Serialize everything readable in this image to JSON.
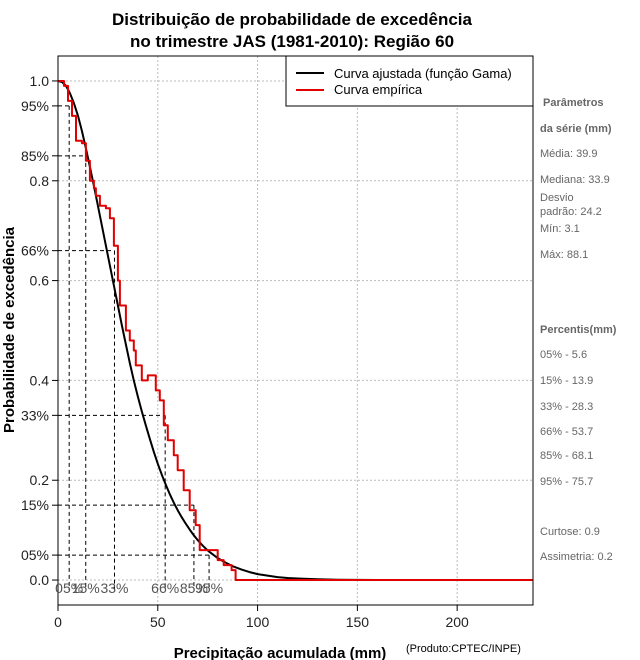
{
  "chart_data": {
    "type": "line",
    "title": [
      "Distribuição de probabilidade de excedência",
      "no trimestre JAS (1981-2010): Região 60"
    ],
    "xlabel": "Precipitação acumulada (mm)",
    "ylabel": "Probabilidade de excedência",
    "credit": "(Produto:CPTEC/INPE)",
    "xlim": [
      0,
      238
    ],
    "ylim": [
      -0.05,
      1.05
    ],
    "xticks": [
      0,
      50,
      100,
      150,
      200
    ],
    "yticks": [
      {
        "v": 1.0,
        "label": "1.0"
      },
      {
        "v": 0.95,
        "label": "95%"
      },
      {
        "v": 0.85,
        "label": "85%"
      },
      {
        "v": 0.8,
        "label": "0.8"
      },
      {
        "v": 0.66,
        "label": "66%"
      },
      {
        "v": 0.6,
        "label": "0.6"
      },
      {
        "v": 0.4,
        "label": "0.4"
      },
      {
        "v": 0.33,
        "label": "33%"
      },
      {
        "v": 0.2,
        "label": "0.2"
      },
      {
        "v": 0.15,
        "label": "15%"
      },
      {
        "v": 0.05,
        "label": "05%"
      },
      {
        "v": 0.0,
        "label": "0.0"
      }
    ],
    "grid": true,
    "legend": [
      {
        "label": "Curva ajustada (função Gama)",
        "color": "#000000"
      },
      {
        "label": "Curva empírica",
        "color": "#e00000"
      }
    ],
    "series": [
      {
        "name": "Curva ajustada (função Gama)",
        "color": "#000000",
        "x": [
          0,
          2,
          4,
          6,
          8,
          10,
          12,
          14,
          16,
          18,
          20,
          22,
          24,
          26,
          28,
          30,
          32,
          34,
          36,
          38,
          40,
          42,
          44,
          46,
          48,
          50,
          52,
          54,
          56,
          58,
          60,
          62,
          64,
          66,
          68,
          70,
          72,
          74,
          76,
          78,
          80,
          84,
          88,
          92,
          96,
          100,
          105,
          110,
          115,
          120,
          130,
          140,
          150,
          160,
          170
        ],
        "y": [
          1.0,
          0.998,
          0.99,
          0.975,
          0.955,
          0.93,
          0.9,
          0.865,
          0.828,
          0.79,
          0.75,
          0.71,
          0.67,
          0.63,
          0.59,
          0.55,
          0.51,
          0.472,
          0.435,
          0.4,
          0.368,
          0.338,
          0.31,
          0.283,
          0.257,
          0.233,
          0.211,
          0.191,
          0.172,
          0.155,
          0.14,
          0.126,
          0.113,
          0.101,
          0.09,
          0.08,
          0.071,
          0.063,
          0.056,
          0.05,
          0.044,
          0.035,
          0.027,
          0.021,
          0.016,
          0.012,
          0.009,
          0.006,
          0.004,
          0.003,
          0.0015,
          0.0007,
          0.0003,
          0.0001,
          0.0
        ]
      },
      {
        "name": "Curva empírica",
        "color": "#e00000",
        "x": [
          0,
          3,
          3,
          5,
          5,
          7,
          7,
          9,
          9,
          12,
          12,
          14,
          14,
          16,
          16,
          18,
          18,
          19,
          19,
          21,
          21,
          24,
          24,
          26,
          26,
          28,
          28,
          30,
          30,
          31,
          31,
          34,
          34,
          36,
          36,
          38,
          38,
          39,
          39,
          42,
          42,
          45,
          45,
          49,
          49,
          51,
          51,
          53,
          53,
          55,
          55,
          58,
          58,
          60,
          60,
          63,
          63,
          66,
          66,
          69,
          69,
          71,
          71,
          80,
          80,
          83,
          83,
          87,
          87,
          89,
          89,
          238
        ],
        "y": [
          1.0,
          1.0,
          0.99,
          0.99,
          0.96,
          0.96,
          0.93,
          0.93,
          0.88,
          0.88,
          0.875,
          0.875,
          0.84,
          0.84,
          0.8,
          0.8,
          0.785,
          0.785,
          0.77,
          0.77,
          0.75,
          0.75,
          0.745,
          0.745,
          0.725,
          0.725,
          0.67,
          0.67,
          0.6,
          0.6,
          0.55,
          0.55,
          0.5,
          0.5,
          0.48,
          0.48,
          0.46,
          0.46,
          0.43,
          0.43,
          0.4,
          0.4,
          0.41,
          0.41,
          0.38,
          0.38,
          0.36,
          0.36,
          0.31,
          0.31,
          0.28,
          0.28,
          0.25,
          0.25,
          0.22,
          0.22,
          0.18,
          0.18,
          0.14,
          0.14,
          0.11,
          0.11,
          0.06,
          0.06,
          0.04,
          0.04,
          0.03,
          0.03,
          0.02,
          0.02,
          0.0,
          0.0
        ]
      }
    ],
    "percentile_markers": [
      {
        "p": 0.95,
        "x": 5.6,
        "label": "05%"
      },
      {
        "p": 0.85,
        "x": 13.9,
        "label": "15%"
      },
      {
        "p": 0.66,
        "x": 28.3,
        "label": "33%"
      },
      {
        "p": 0.33,
        "x": 53.7,
        "label": "66%"
      },
      {
        "p": 0.15,
        "x": 68.1,
        "label": "85%"
      },
      {
        "p": 0.05,
        "x": 75.7,
        "label": "95%"
      }
    ]
  },
  "side_panel": {
    "params_title": [
      "Parâmetros",
      "da série (mm)"
    ],
    "params": [
      "Média: 39.9",
      "Mediana: 33.9",
      "Desvio",
      "padrão: 24.2",
      "Mín: 3.1",
      "Máx: 88.1"
    ],
    "percentis_title": "Percentis(mm)",
    "percentis": [
      "05% - 5.6",
      "15% - 13.9",
      "33% - 28.3",
      "66% - 53.7",
      "85% - 68.1",
      "95% - 75.7"
    ],
    "extra": [
      "Curtose: 0.9",
      "Assimetria: 0.2"
    ]
  }
}
